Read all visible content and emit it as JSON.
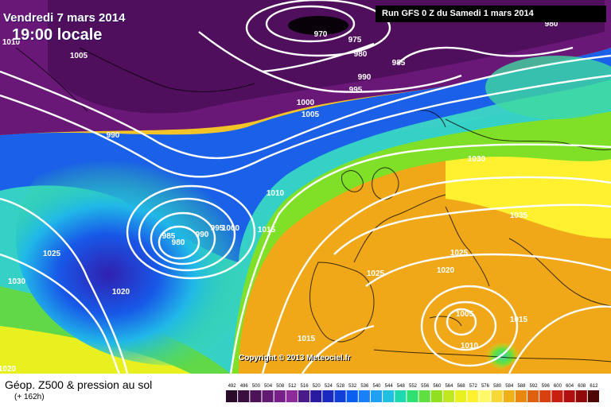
{
  "header": {
    "date": "Vendredi 7 mars 2014",
    "time": "19:00 locale",
    "run": "Run GFS 0 Z du Samedi 1 mars 2014"
  },
  "footer": {
    "copyright": "Copyright © 2013 Meteociel.fr",
    "product": "Géop. Z500 & pression au sol",
    "forecast_hour": "(+ 162h)"
  },
  "legend": {
    "values": [
      "492",
      "496",
      "500",
      "504",
      "508",
      "512",
      "516",
      "520",
      "524",
      "528",
      "532",
      "536",
      "540",
      "544",
      "548",
      "552",
      "556",
      "560",
      "564",
      "568",
      "572",
      "576",
      "580",
      "584",
      "588",
      "592",
      "596",
      "600",
      "604",
      "608",
      "612"
    ],
    "colors": [
      "#2a0a2a",
      "#3a0e3e",
      "#4e1258",
      "#621a72",
      "#78208a",
      "#8e2a9a",
      "#4a1a8a",
      "#2a1aa0",
      "#1a2ac0",
      "#1040d8",
      "#0a5ef0",
      "#1a80f8",
      "#20a0f0",
      "#20c0e0",
      "#20d8b0",
      "#30e070",
      "#60e040",
      "#90e020",
      "#c0e820",
      "#e8f020",
      "#fff030",
      "#fff868",
      "#f8d838",
      "#f0b018",
      "#e88810",
      "#e06010",
      "#d84010",
      "#c82010",
      "#b01010",
      "#900a0a",
      "#500404"
    ]
  },
  "isobars": [
    {
      "label": "970"
    },
    {
      "label": "975"
    },
    {
      "label": "980"
    },
    {
      "label": "985"
    },
    {
      "label": "990"
    },
    {
      "label": "995"
    },
    {
      "label": "1000"
    },
    {
      "label": "1005"
    },
    {
      "label": "1005"
    },
    {
      "label": "990"
    },
    {
      "label": "1010"
    },
    {
      "label": "1015"
    },
    {
      "label": "985"
    },
    {
      "label": "980"
    },
    {
      "label": "990"
    },
    {
      "label": "995"
    },
    {
      "label": "1000"
    },
    {
      "label": "1025"
    },
    {
      "label": "1030"
    },
    {
      "label": "1020"
    },
    {
      "label": "1030"
    },
    {
      "label": "1035"
    },
    {
      "label": "1025"
    },
    {
      "label": "1025"
    },
    {
      "label": "1020"
    },
    {
      "label": "1005"
    },
    {
      "label": "1010"
    },
    {
      "label": "1015"
    },
    {
      "label": "1015"
    },
    {
      "label": "1020"
    },
    {
      "label": "980"
    },
    {
      "label": "1010"
    }
  ]
}
